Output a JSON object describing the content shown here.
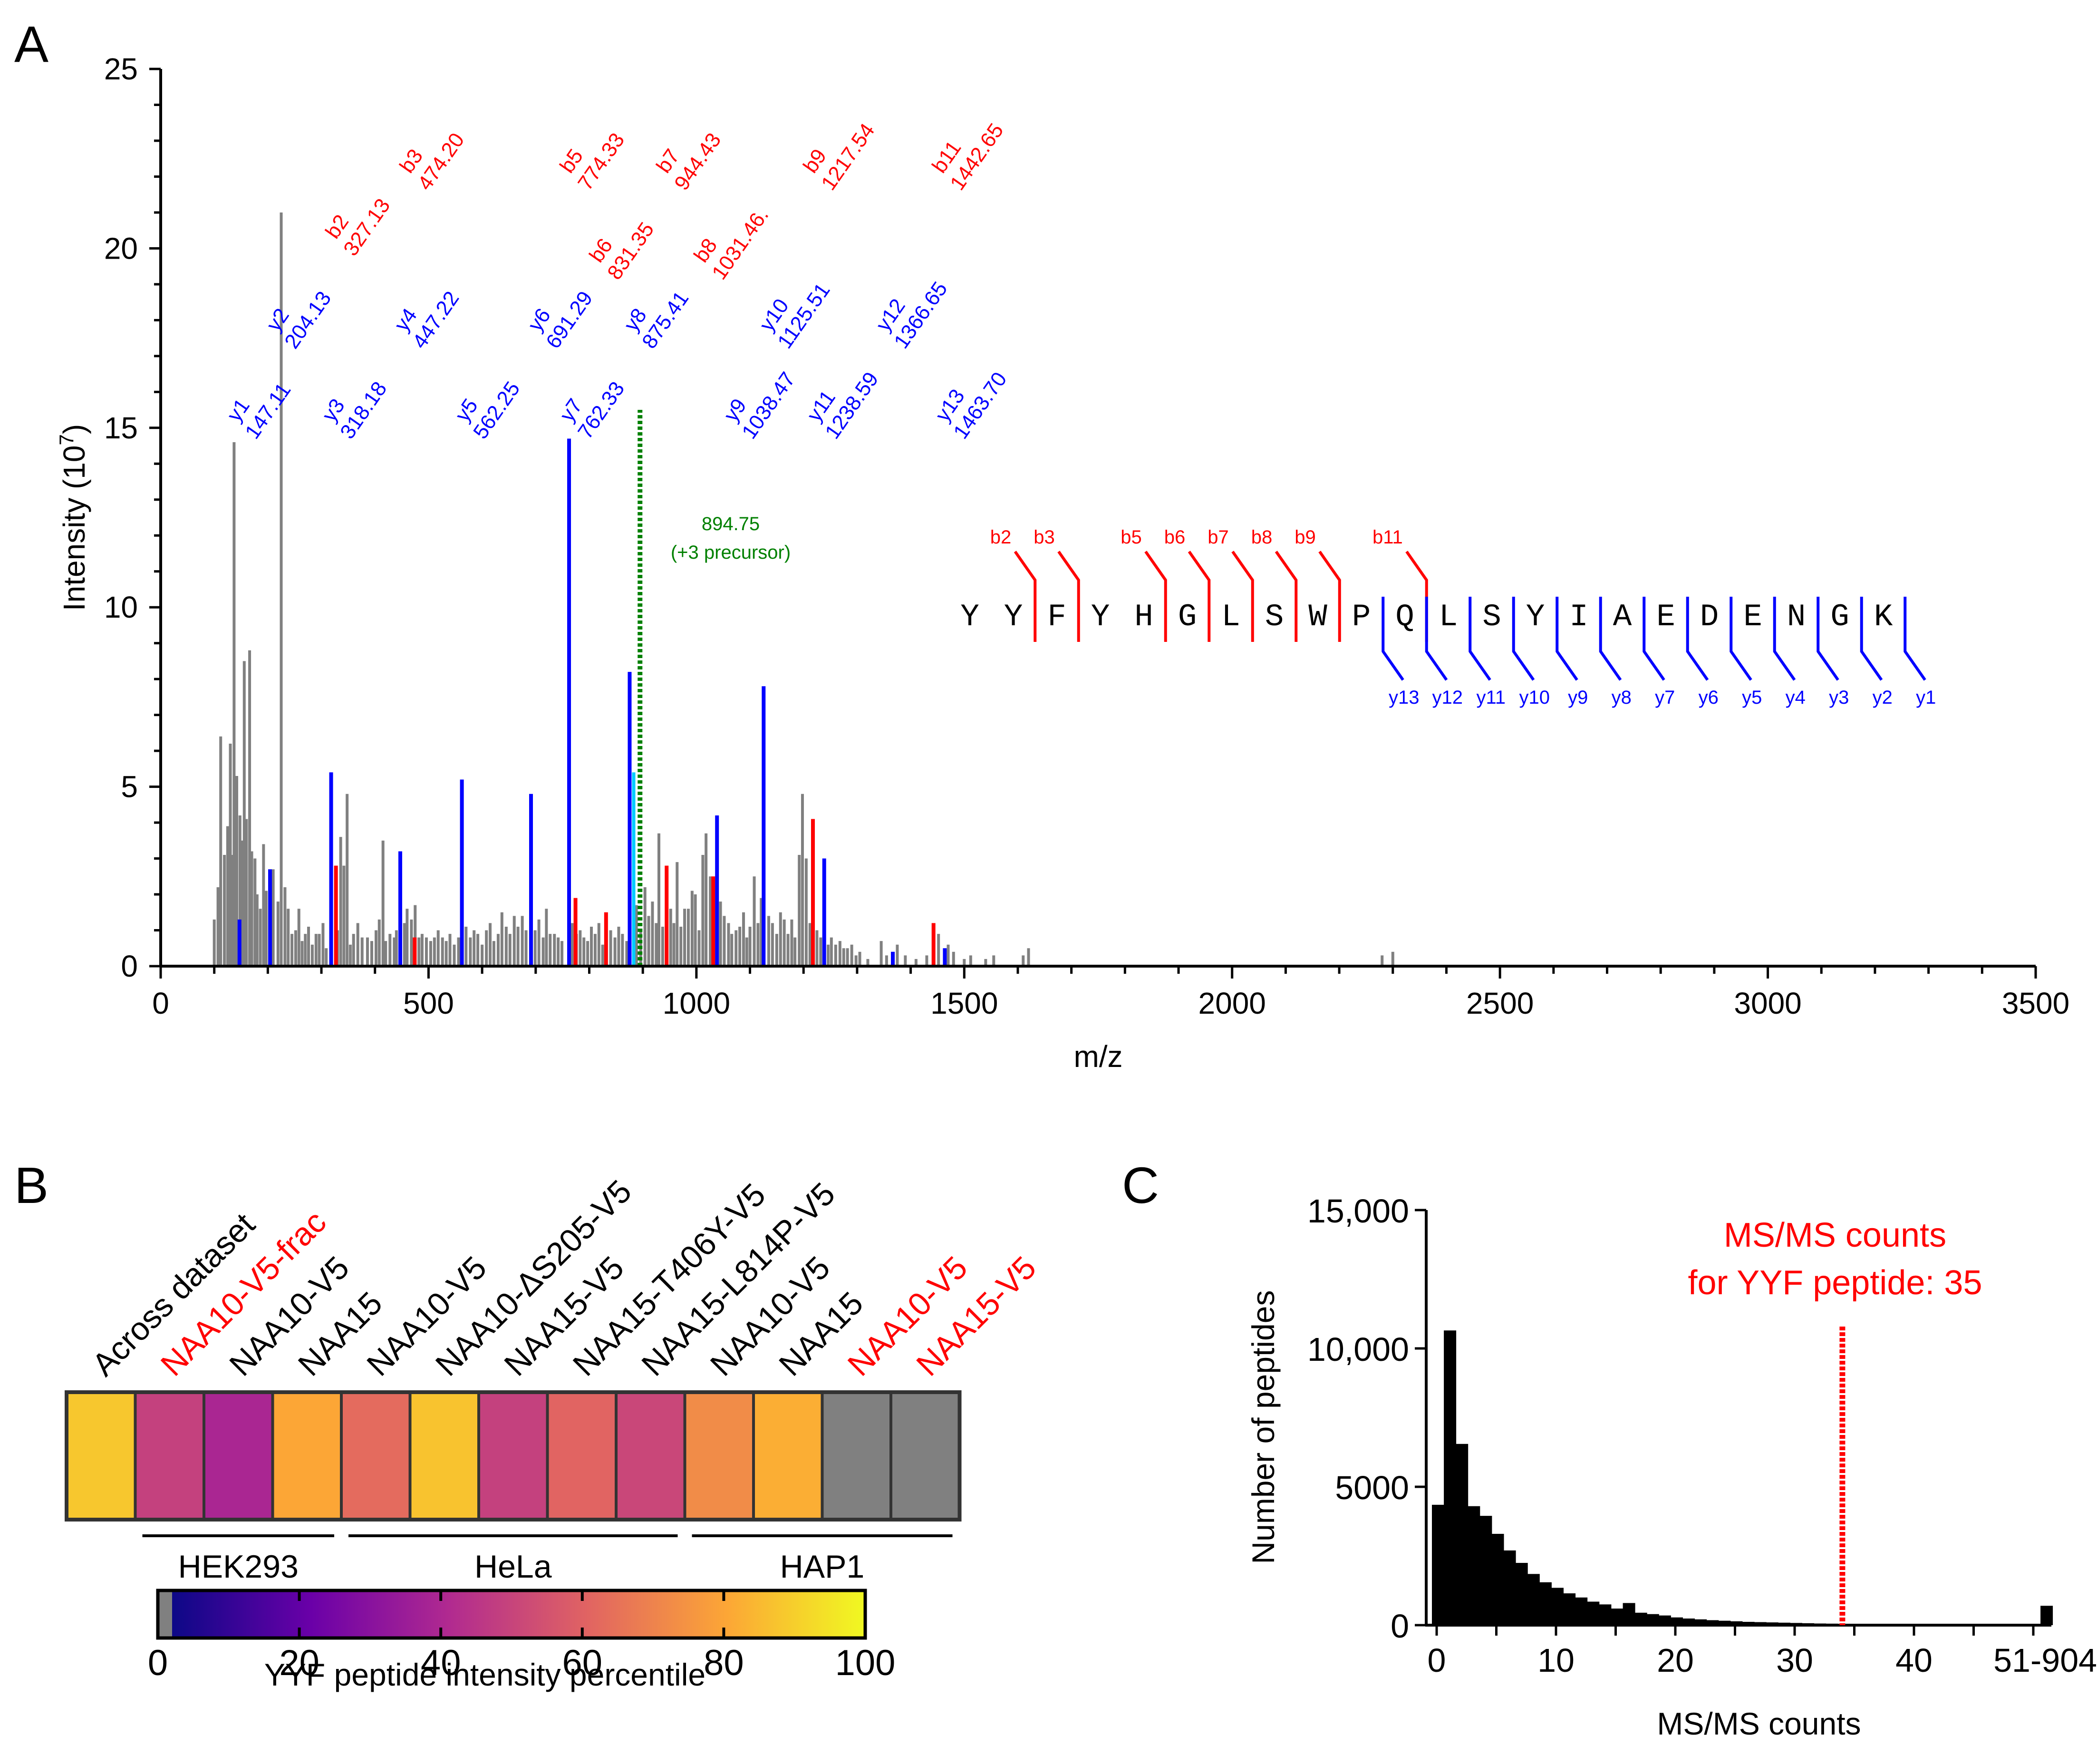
{
  "colors": {
    "gray": "#808080",
    "blue": "#0000ff",
    "red": "#ff0000",
    "green": "#008000",
    "cyan": "#00ccff",
    "black": "#000000",
    "outline": "#333333",
    "scale": [
      "#0d0887",
      "#6a00a8",
      "#b12a90",
      "#e16462",
      "#fca636",
      "#f0f921"
    ]
  },
  "chart_data": [
    {
      "panel": "A",
      "type": "bar",
      "title": "",
      "xlabel": "m/z",
      "ylabel": "Intensity (10",
      "ylabel_sup": "7",
      "ylabel_end": ")",
      "xlim": [
        0,
        3500
      ],
      "ylim": [
        0,
        25
      ],
      "xticks": [
        0,
        500,
        1000,
        1500,
        2000,
        2500,
        3000,
        3500
      ],
      "yticks": [
        0,
        5,
        10,
        15,
        20,
        25
      ],
      "background_peaks": [
        [
          100,
          1.3
        ],
        [
          107,
          2.2
        ],
        [
          112,
          6.4
        ],
        [
          119,
          3.1
        ],
        [
          125,
          3.9
        ],
        [
          130,
          6.2
        ],
        [
          133,
          3.1
        ],
        [
          137,
          14.6
        ],
        [
          142,
          5.3
        ],
        [
          148,
          4.2
        ],
        [
          152,
          3.5
        ],
        [
          156,
          8.5
        ],
        [
          160,
          4.1
        ],
        [
          166,
          8.8
        ],
        [
          170,
          3.2
        ],
        [
          176,
          3.0
        ],
        [
          180,
          2.0
        ],
        [
          186,
          1.6
        ],
        [
          192,
          3.4
        ],
        [
          197,
          2.1
        ],
        [
          210,
          2.7
        ],
        [
          219,
          1.8
        ],
        [
          225,
          21.0
        ],
        [
          232,
          2.2
        ],
        [
          238,
          1.6
        ],
        [
          245,
          0.9
        ],
        [
          252,
          1.0
        ],
        [
          258,
          1.6
        ],
        [
          264,
          0.7
        ],
        [
          270,
          0.9
        ],
        [
          276,
          1.1
        ],
        [
          283,
          0.6
        ],
        [
          290,
          0.9
        ],
        [
          296,
          0.9
        ],
        [
          303,
          1.2
        ],
        [
          309,
          0.5
        ],
        [
          330,
          1.0
        ],
        [
          336,
          3.6
        ],
        [
          342,
          2.8
        ],
        [
          348,
          4.8
        ],
        [
          354,
          0.6
        ],
        [
          360,
          0.9
        ],
        [
          368,
          1.2
        ],
        [
          376,
          0.8
        ],
        [
          386,
          0.8
        ],
        [
          394,
          0.7
        ],
        [
          402,
          1.0
        ],
        [
          408,
          1.3
        ],
        [
          415,
          3.5
        ],
        [
          420,
          0.7
        ],
        [
          428,
          0.9
        ],
        [
          436,
          0.8
        ],
        [
          440,
          1.0
        ],
        [
          455,
          1.2
        ],
        [
          460,
          1.6
        ],
        [
          468,
          1.3
        ],
        [
          475,
          1.7
        ],
        [
          482,
          0.8
        ],
        [
          488,
          0.9
        ],
        [
          496,
          0.8
        ],
        [
          504,
          0.7
        ],
        [
          511,
          0.8
        ],
        [
          518,
          1.0
        ],
        [
          526,
          0.8
        ],
        [
          533,
          0.7
        ],
        [
          540,
          0.9
        ],
        [
          548,
          0.6
        ],
        [
          556,
          0.8
        ],
        [
          570,
          1.1
        ],
        [
          578,
          0.8
        ],
        [
          585,
          1.0
        ],
        [
          592,
          0.9
        ],
        [
          600,
          0.6
        ],
        [
          608,
          1.0
        ],
        [
          615,
          1.2
        ],
        [
          622,
          0.7
        ],
        [
          630,
          0.9
        ],
        [
          637,
          1.5
        ],
        [
          645,
          1.1
        ],
        [
          652,
          0.9
        ],
        [
          660,
          1.4
        ],
        [
          667,
          1.1
        ],
        [
          675,
          1.4
        ],
        [
          682,
          1.0
        ],
        [
          699,
          1.0
        ],
        [
          706,
          1.3
        ],
        [
          714,
          0.8
        ],
        [
          720,
          1.6
        ],
        [
          727,
          0.9
        ],
        [
          735,
          0.9
        ],
        [
          742,
          0.8
        ],
        [
          749,
          0.7
        ],
        [
          768,
          1.2
        ],
        [
          776,
          0.9
        ],
        [
          783,
          1.0
        ],
        [
          790,
          0.8
        ],
        [
          797,
          0.7
        ],
        [
          804,
          1.1
        ],
        [
          811,
          0.9
        ],
        [
          818,
          1.2
        ],
        [
          825,
          0.6
        ],
        [
          840,
          1.0
        ],
        [
          848,
          0.8
        ],
        [
          855,
          1.1
        ],
        [
          862,
          0.9
        ],
        [
          870,
          0.7
        ],
        [
          888,
          1.7
        ],
        [
          896,
          1.0
        ],
        [
          904,
          2.2
        ],
        [
          911,
          1.4
        ],
        [
          918,
          1.8
        ],
        [
          925,
          1.2
        ],
        [
          930,
          3.7
        ],
        [
          937,
          1.1
        ],
        [
          944,
          1.4
        ],
        [
          952,
          1.6
        ],
        [
          958,
          1.2
        ],
        [
          964,
          2.9
        ],
        [
          971,
          1.1
        ],
        [
          978,
          1.6
        ],
        [
          985,
          1.6
        ],
        [
          992,
          2.1
        ],
        [
          998,
          2.0
        ],
        [
          1005,
          1.0
        ],
        [
          1012,
          3.1
        ],
        [
          1018,
          3.7
        ],
        [
          1026,
          2.5
        ],
        [
          1045,
          1.8
        ],
        [
          1052,
          1.4
        ],
        [
          1060,
          1.2
        ],
        [
          1066,
          0.9
        ],
        [
          1074,
          1.0
        ],
        [
          1081,
          1.1
        ],
        [
          1088,
          1.5
        ],
        [
          1094,
          0.8
        ],
        [
          1100,
          1.1
        ],
        [
          1108,
          2.5
        ],
        [
          1115,
          1.2
        ],
        [
          1121,
          1.9
        ],
        [
          1135,
          1.4
        ],
        [
          1142,
          1.2
        ],
        [
          1150,
          0.9
        ],
        [
          1157,
          1.5
        ],
        [
          1164,
          1.3
        ],
        [
          1171,
          0.9
        ],
        [
          1178,
          1.3
        ],
        [
          1184,
          0.8
        ],
        [
          1192,
          3.1
        ],
        [
          1198,
          4.8
        ],
        [
          1205,
          3.0
        ],
        [
          1212,
          1.2
        ],
        [
          1225,
          1.0
        ],
        [
          1232,
          0.8
        ],
        [
          1246,
          0.6
        ],
        [
          1252,
          0.8
        ],
        [
          1260,
          0.6
        ],
        [
          1268,
          0.7
        ],
        [
          1275,
          0.5
        ],
        [
          1282,
          0.5
        ],
        [
          1290,
          0.6
        ],
        [
          1298,
          0.3
        ],
        [
          1305,
          0.4
        ],
        [
          1320,
          0.2
        ],
        [
          1345,
          0.7
        ],
        [
          1355,
          0.3
        ],
        [
          1375,
          0.6
        ],
        [
          1390,
          0.3
        ],
        [
          1410,
          0.2
        ],
        [
          1430,
          0.3
        ],
        [
          1452,
          0.9
        ],
        [
          1470,
          0.6
        ],
        [
          1480,
          0.4
        ],
        [
          1500,
          0.2
        ],
        [
          1512,
          0.3
        ],
        [
          1540,
          0.2
        ],
        [
          1555,
          0.3
        ],
        [
          1610,
          0.3
        ],
        [
          1620,
          0.5
        ],
        [
          2280,
          0.3
        ],
        [
          2300,
          0.4
        ]
      ],
      "b_ions": [
        [
          327.13,
          2.8
        ],
        [
          474.2,
          0.8
        ],
        [
          774.33,
          1.9
        ],
        [
          831.35,
          1.5
        ],
        [
          944.43,
          2.8
        ],
        [
          1031.46,
          2.5
        ],
        [
          1217.54,
          4.1
        ],
        [
          1442.65,
          1.2
        ]
      ],
      "y_ions": [
        [
          147.11,
          1.3
        ],
        [
          204.13,
          2.7
        ],
        [
          318.18,
          5.4
        ],
        [
          447.22,
          3.2
        ],
        [
          562.25,
          5.2
        ],
        [
          691.29,
          4.8
        ],
        [
          762.33,
          14.7
        ],
        [
          875.41,
          8.2
        ],
        [
          1038.47,
          4.2
        ],
        [
          1125.51,
          7.8
        ],
        [
          1238.59,
          3.0
        ],
        [
          1366.65,
          0.4
        ],
        [
          1463.7,
          0.5
        ]
      ],
      "cyan_peaks": [
        [
          883,
          5.4
        ]
      ],
      "precursor": {
        "mz": 894.75,
        "label_value": "894.75",
        "label_text": "(+3 precursor)",
        "top": 15.5
      },
      "b_labels": [
        {
          "ion": "b2",
          "mz": "327.13"
        },
        {
          "ion": "b3",
          "mz": "474.20"
        },
        {
          "ion": "b5",
          "mz": "774.33"
        },
        {
          "ion": "b6",
          "mz": "831.35"
        },
        {
          "ion": "b7",
          "mz": "944.43"
        },
        {
          "ion": "b8",
          "mz": "1031.46."
        },
        {
          "ion": "b9",
          "mz": "1217.54"
        },
        {
          "ion": "b11",
          "mz": "1442.65"
        }
      ],
      "y_labels": [
        {
          "ion": "y1",
          "mz": "147.11"
        },
        {
          "ion": "y2",
          "mz": "204.13"
        },
        {
          "ion": "y3",
          "mz": "318.18"
        },
        {
          "ion": "y4",
          "mz": "447.22"
        },
        {
          "ion": "y5",
          "mz": "562.25"
        },
        {
          "ion": "y6",
          "mz": "691.29"
        },
        {
          "ion": "y7",
          "mz": "762.33"
        },
        {
          "ion": "y8",
          "mz": "875.41"
        },
        {
          "ion": "y9",
          "mz": "1038.47"
        },
        {
          "ion": "y10",
          "mz": "1125.51"
        },
        {
          "ion": "y11",
          "mz": "1238.59"
        },
        {
          "ion": "y12",
          "mz": "1366.65"
        },
        {
          "ion": "y13",
          "mz": "1463.70"
        }
      ],
      "sequence": [
        "Y",
        "Y",
        "F",
        "Y",
        "H",
        "G",
        "L",
        "S",
        "W",
        "P",
        "Q",
        "L",
        "S",
        "Y",
        "I",
        "A",
        "E",
        "D",
        "E",
        "N",
        "G",
        "K"
      ],
      "seq_b_marks": [
        "b2",
        "b3",
        "",
        "b5",
        "b6",
        "b7",
        "b8",
        "b9",
        "",
        "b11"
      ],
      "seq_y_marks": [
        "y13",
        "y12",
        "y11",
        "y10",
        "y9",
        "y8",
        "y7",
        "y6",
        "y5",
        "y4",
        "y3",
        "y2",
        "y1"
      ]
    },
    {
      "panel": "B",
      "type": "heatmap",
      "title": "",
      "cells": [
        {
          "label": "Across dataset",
          "value": 88,
          "na": false,
          "label_color": "black"
        },
        {
          "label": "NAA10-V5-frac",
          "value": 48,
          "na": false,
          "label_color": "red"
        },
        {
          "label": "NAA10-V5",
          "value": 38,
          "na": false,
          "label_color": "black"
        },
        {
          "label": "NAA15",
          "value": 80,
          "na": false,
          "label_color": "black"
        },
        {
          "label": "NAA10-V5",
          "value": 62,
          "na": false,
          "label_color": "black"
        },
        {
          "label": "NAA10-ΔS205-V5",
          "value": 87,
          "na": false,
          "label_color": "black"
        },
        {
          "label": "NAA15-V5",
          "value": 48,
          "na": false,
          "label_color": "black"
        },
        {
          "label": "NAA15-T406Y-V5",
          "value": 60,
          "na": false,
          "label_color": "black"
        },
        {
          "label": "NAA15-L814P-V5",
          "value": 50,
          "na": false,
          "label_color": "black"
        },
        {
          "label": "NAA10-V5",
          "value": 72,
          "na": false,
          "label_color": "black"
        },
        {
          "label": "NAA15",
          "value": 82,
          "na": false,
          "label_color": "black"
        },
        {
          "label": "NAA10-V5",
          "value": null,
          "na": true,
          "label_color": "red"
        },
        {
          "label": "NAA15-V5",
          "value": null,
          "na": true,
          "label_color": "red"
        }
      ],
      "groups": [
        {
          "name": "HEK293",
          "from": 1,
          "to": 3
        },
        {
          "name": "HeLa",
          "from": 4,
          "to": 8
        },
        {
          "name": "HAP1",
          "from": 9,
          "to": 12
        }
      ],
      "colorbar": {
        "min": 0,
        "max": 100,
        "ticks": [
          0,
          20,
          40,
          60,
          80,
          100
        ],
        "label": "YYF peptide intensity percentile"
      }
    },
    {
      "panel": "C",
      "type": "bar",
      "title": "",
      "xlabel": "MS/MS counts",
      "ylabel": "Number of peptides",
      "ylim": [
        0,
        15000
      ],
      "yticks": [
        0,
        5000,
        10000,
        15000
      ],
      "ytick_labels": [
        "0",
        "5000",
        "10,000",
        "15,000"
      ],
      "xticks": [
        0,
        10,
        20,
        30,
        40,
        51
      ],
      "xtick_labels": [
        "0",
        "10",
        "20",
        "30",
        "40",
        "51-904"
      ],
      "x": [
        0,
        1,
        2,
        3,
        4,
        5,
        6,
        7,
        8,
        9,
        10,
        11,
        12,
        13,
        14,
        15,
        16,
        17,
        18,
        19,
        20,
        21,
        22,
        23,
        24,
        25,
        26,
        27,
        28,
        29,
        30,
        31,
        32,
        33,
        34,
        35,
        36,
        37,
        38,
        39,
        40,
        41,
        42,
        43,
        44,
        45,
        46,
        47,
        48,
        49,
        51
      ],
      "values": [
        4350,
        10650,
        6550,
        4300,
        3950,
        3300,
        2700,
        2250,
        1850,
        1550,
        1350,
        1150,
        1000,
        850,
        750,
        600,
        800,
        450,
        400,
        350,
        280,
        240,
        210,
        180,
        160,
        140,
        120,
        110,
        100,
        90,
        80,
        70,
        60,
        55,
        50,
        45,
        40,
        40,
        35,
        35,
        30,
        30,
        28,
        26,
        24,
        22,
        20,
        18,
        16,
        15,
        700
      ],
      "annotation": {
        "x": 34,
        "line1": "MS/MS counts",
        "line2": "for YYF peptide: 35"
      }
    }
  ],
  "panel_labels": {
    "a": "A",
    "b": "B",
    "c": "C"
  }
}
